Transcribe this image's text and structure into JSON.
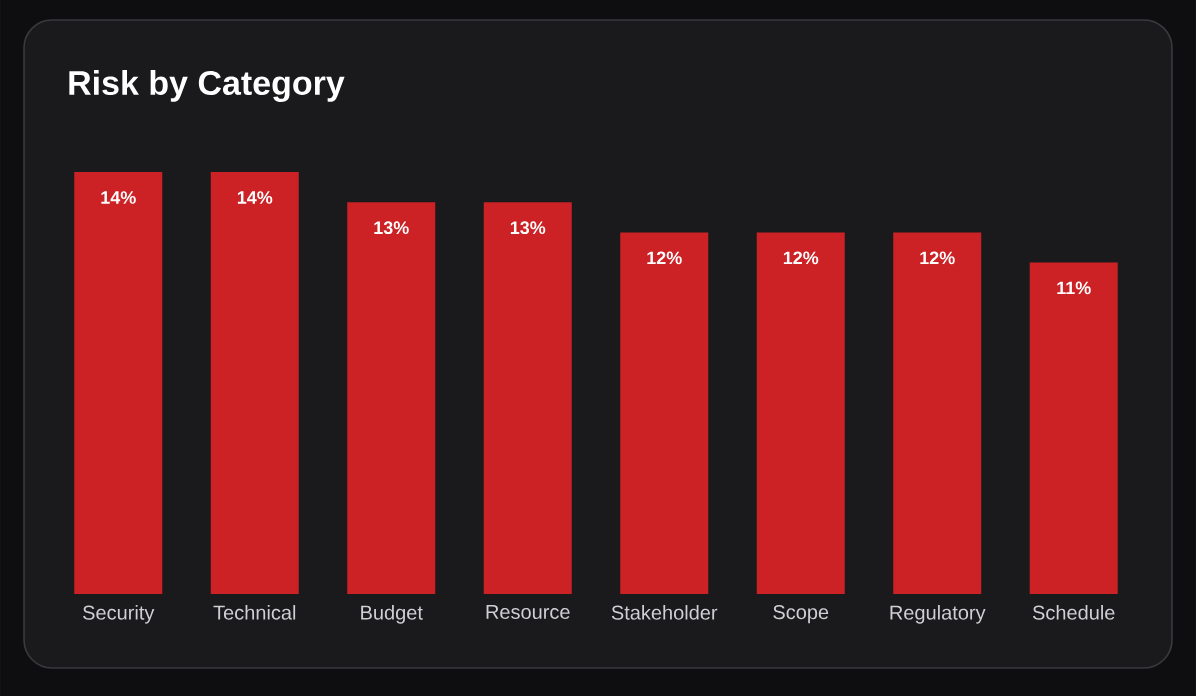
{
  "chart_data": {
    "type": "bar",
    "title": "Risk by Category",
    "categories": [
      "Security",
      "Technical",
      "Budget",
      "Resource",
      "Stakeholder",
      "Scope",
      "Regulatory",
      "Schedule"
    ],
    "values": [
      14,
      14,
      13,
      13,
      12,
      12,
      12,
      11
    ],
    "value_labels": [
      "14%",
      "14%",
      "13%",
      "13%",
      "12%",
      "12%",
      "12%",
      "11%"
    ],
    "color": "#cc2226"
  }
}
